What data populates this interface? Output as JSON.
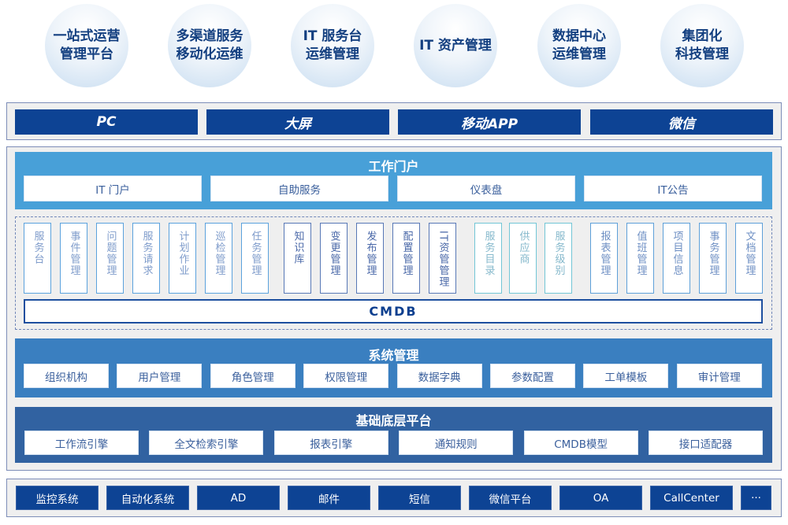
{
  "scenarios": [
    [
      "一站式运营",
      "管理平台"
    ],
    [
      "多渠道服务",
      "移动化运维"
    ],
    [
      "IT 服务台",
      "运维管理"
    ],
    [
      "IT 资产管理"
    ],
    [
      "数据中心",
      "运维管理"
    ],
    [
      "集团化",
      "科技管理"
    ]
  ],
  "channels": [
    "PC",
    "大屏",
    "移动APP",
    "微信"
  ],
  "portal": {
    "title": "工作门户",
    "items": [
      "IT 门户",
      "自助服务",
      "仪表盘",
      "IT公告"
    ]
  },
  "modules": [
    {
      "group": "service",
      "label": "服务台"
    },
    {
      "group": "service",
      "label": "事件管理"
    },
    {
      "group": "service",
      "label": "问题管理"
    },
    {
      "group": "service",
      "label": "服务请求"
    },
    {
      "group": "service",
      "label": "计划作业"
    },
    {
      "group": "service",
      "label": "巡检管理"
    },
    {
      "group": "service",
      "label": "任务管理"
    },
    {
      "group": "config",
      "label": "知识库"
    },
    {
      "group": "config",
      "label": "变更管理"
    },
    {
      "group": "config",
      "label": "发布管理"
    },
    {
      "group": "config",
      "label": "配置管理"
    },
    {
      "group": "config",
      "label": "IT资管管理"
    },
    {
      "group": "catalog",
      "label": "服务目录"
    },
    {
      "group": "catalog",
      "label": "供应商"
    },
    {
      "group": "catalog",
      "label": "服务级别"
    },
    {
      "group": "office",
      "label": "报表管理"
    },
    {
      "group": "office",
      "label": "值班管理"
    },
    {
      "group": "office",
      "label": "项目信息"
    },
    {
      "group": "office",
      "label": "事务管理"
    },
    {
      "group": "office",
      "label": "文档管理"
    }
  ],
  "module_colors": {
    "service": {
      "border": "#5ba2dd",
      "text": "#7f9ccb"
    },
    "config": {
      "border": "#5878b6",
      "text": "#4a68a8"
    },
    "catalog": {
      "border": "#72c6d6",
      "text": "#86b9cc"
    },
    "office": {
      "border": "#5ea0d9",
      "text": "#6f90c4"
    }
  },
  "cmdb": "CMDB",
  "system": {
    "title": "系统管理",
    "items": [
      "组织机构",
      "用户管理",
      "角色管理",
      "权限管理",
      "数据字典",
      "参数配置",
      "工单模板",
      "审计管理"
    ]
  },
  "base": {
    "title": "基础底层平台",
    "items": [
      "工作流引擎",
      "全文检索引擎",
      "报表引擎",
      "通知规则",
      "CMDB模型",
      "接口适配器"
    ]
  },
  "integrations": [
    "监控系统",
    "自动化系统",
    "AD",
    "邮件",
    "短信",
    "微信平台",
    "OA",
    "CallCenter",
    "···"
  ],
  "colors": {
    "dark": "#0d4394",
    "portal": "#48a0d8",
    "system": "#3a7fc0",
    "base": "#3162a1"
  }
}
